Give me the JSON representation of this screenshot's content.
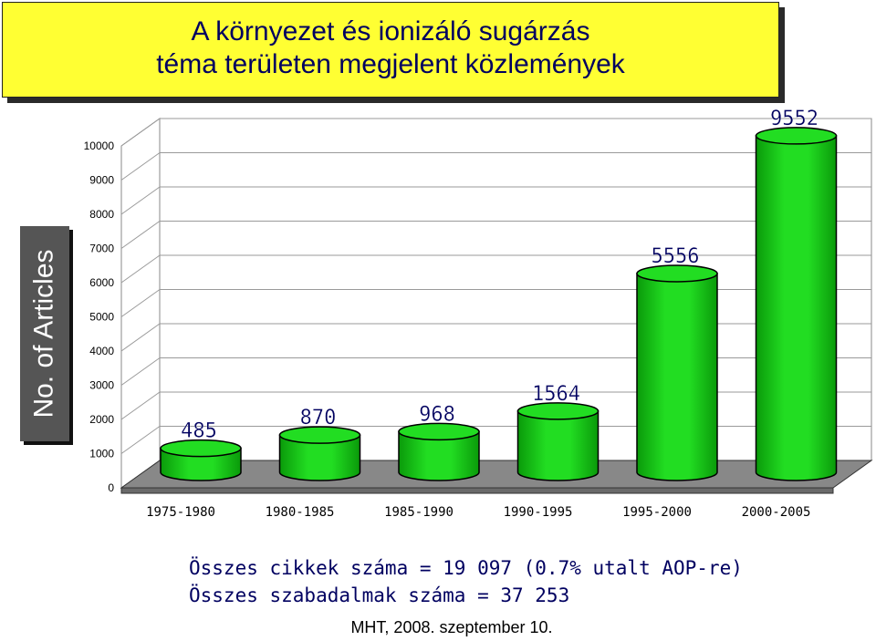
{
  "title": {
    "line1": "A környezet és ionizáló sugárzás",
    "line2": "téma területen megjelent közlemények"
  },
  "y_axis_label": "No. of Articles",
  "chart_data": {
    "type": "bar",
    "categories": [
      "1975-1980",
      "1980-1985",
      "1985-1990",
      "1990-1995",
      "1995-2000",
      "2000-2005"
    ],
    "values": [
      485,
      870,
      968,
      1564,
      5556,
      9552
    ],
    "data_labels": [
      "485",
      "870",
      "968",
      "1564",
      "5556",
      "9552"
    ],
    "yticks": [
      "0",
      "1000",
      "2000",
      "3000",
      "4000",
      "5000",
      "6000",
      "7000",
      "8000",
      "9000",
      "10000"
    ],
    "ylim": [
      0,
      10000
    ],
    "ylabel": "No. of Articles",
    "bar_color": "#22dd22",
    "grid": true
  },
  "summary": {
    "line1": "Összes cikkek száma = 19 097 (0.7% utalt AOP-re)",
    "line2": "Összes szabadalmak száma = 37 253"
  },
  "footer": "MHT, 2008. szeptember 10."
}
